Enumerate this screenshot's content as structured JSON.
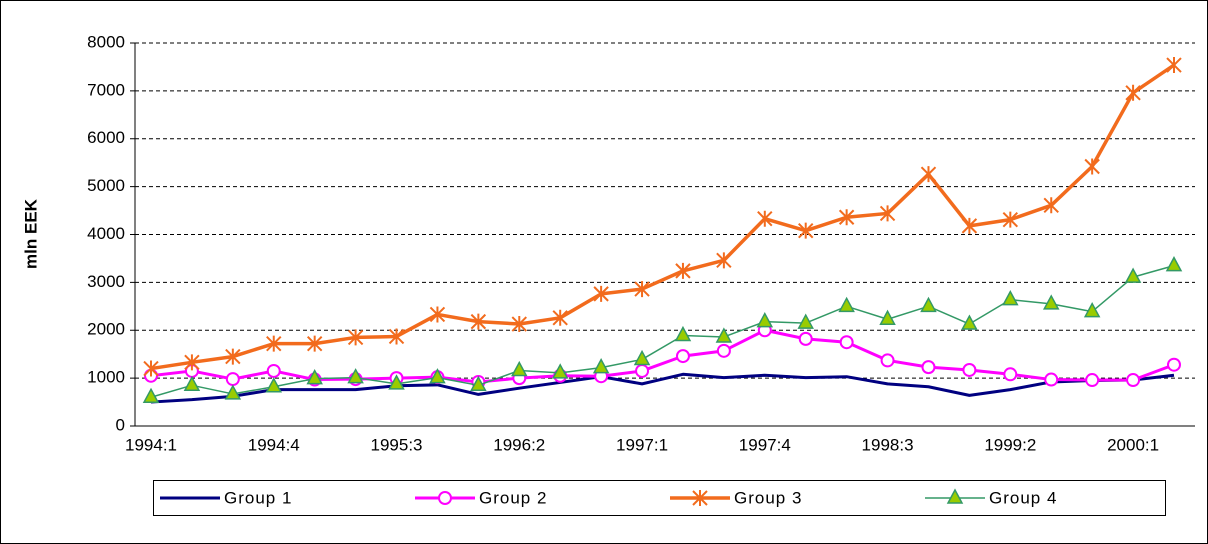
{
  "chart_data": {
    "type": "line",
    "y_label": "mln EEK",
    "categories": [
      "1994:1",
      null,
      null,
      "1994:4",
      null,
      null,
      "1995:3",
      null,
      null,
      "1996:2",
      null,
      null,
      "1997:1",
      null,
      null,
      "1997:4",
      null,
      null,
      "1998:3",
      null,
      null,
      "1999:2",
      null,
      null,
      "2000:1",
      null
    ],
    "series": [
      {
        "name": "Group 1",
        "color": "#000080",
        "width": 3,
        "marker": null,
        "values": [
          500,
          550,
          620,
          760,
          760,
          760,
          840,
          860,
          660,
          790,
          910,
          1030,
          880,
          1080,
          1010,
          1060,
          1010,
          1030,
          880,
          820,
          640,
          760,
          920,
          950,
          960,
          1060
        ]
      },
      {
        "name": "Group 2",
        "color": "#ff00ff",
        "width": 3,
        "marker": "circle",
        "values": [
          1050,
          1150,
          980,
          1150,
          970,
          980,
          1000,
          1020,
          920,
          1000,
          1050,
          1040,
          1150,
          1460,
          1570,
          2000,
          1820,
          1750,
          1370,
          1230,
          1170,
          1080,
          970,
          960,
          960,
          1280
        ]
      },
      {
        "name": "Group 3",
        "color": "#f26b1d",
        "width": 3.5,
        "marker": "star",
        "values": [
          1200,
          1330,
          1450,
          1720,
          1720,
          1850,
          1870,
          2330,
          2180,
          2130,
          2260,
          2760,
          2860,
          3240,
          3460,
          4330,
          4080,
          4360,
          4440,
          5260,
          4180,
          4310,
          4610,
          5420,
          6960,
          7540
        ]
      },
      {
        "name": "Group 4",
        "color": "#339966",
        "width": 1.5,
        "marker": "triangle",
        "values": [
          600,
          850,
          670,
          820,
          990,
          1010,
          880,
          1010,
          850,
          1160,
          1110,
          1220,
          1390,
          1890,
          1860,
          2180,
          2150,
          2500,
          2230,
          2500,
          2130,
          2640,
          2550,
          2390,
          3110,
          3350
        ]
      }
    ],
    "ylim": [
      0,
      8000
    ],
    "yticks": [
      0,
      1000,
      2000,
      3000,
      4000,
      5000,
      6000,
      7000,
      8000
    ],
    "grid": true
  }
}
